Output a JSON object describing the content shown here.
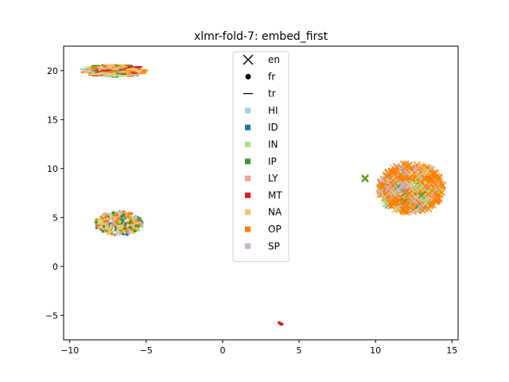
{
  "chart_data": {
    "type": "scatter",
    "title": "xlmr-fold-7: embed_first",
    "xlabel": "",
    "ylabel": "",
    "xlim": [
      -10.4,
      15.4
    ],
    "ylim": [
      -7.5,
      22.5
    ],
    "xticks": [
      -10,
      -5,
      0,
      5,
      10,
      15
    ],
    "yticks": [
      -5,
      0,
      5,
      10,
      15,
      20
    ],
    "xtick_labels": [
      "−10",
      "−5",
      "0",
      "5",
      "10",
      "15"
    ],
    "ytick_labels": [
      "−5",
      "0",
      "5",
      "10",
      "15",
      "20"
    ],
    "grid": false,
    "legend_position": "upper center",
    "markers_legend": [
      {
        "name": "en",
        "marker": "x"
      },
      {
        "name": "fr",
        "marker": "dot"
      },
      {
        "name": "tr",
        "marker": "line"
      }
    ],
    "classes": [
      {
        "name": "HI",
        "color": "#a6cee3"
      },
      {
        "name": "ID",
        "color": "#1f78b4"
      },
      {
        "name": "IN",
        "color": "#b2df8a"
      },
      {
        "name": "IP",
        "color": "#33a02c"
      },
      {
        "name": "LY",
        "color": "#fb9a99"
      },
      {
        "name": "MT",
        "color": "#e31a1c"
      },
      {
        "name": "NA",
        "color": "#fdbf6f"
      },
      {
        "name": "OP",
        "color": "#ff7f00"
      },
      {
        "name": "SP",
        "color": "#cab2d6"
      }
    ],
    "clusters": [
      {
        "marker": "line",
        "cx": -7.1,
        "cy": 20.0,
        "rx": 2.1,
        "ry": 0.65,
        "n": 260,
        "mix": {
          "NA": 0.35,
          "OP": 0.2,
          "IN": 0.12,
          "IP": 0.12,
          "MT": 0.1,
          "SP": 0.06,
          "HI": 0.05
        }
      },
      {
        "marker": "dot",
        "cx": -6.8,
        "cy": 4.4,
        "rx": 1.6,
        "ry": 1.2,
        "n": 380,
        "mix": {
          "NA": 0.3,
          "OP": 0.25,
          "IP": 0.15,
          "SP": 0.1,
          "ID": 0.1,
          "IN": 0.1
        }
      },
      {
        "marker": "x",
        "cx": 12.3,
        "cy": 8.0,
        "rx": 2.1,
        "ry": 2.5,
        "n": 520,
        "mix": {
          "OP": 0.55,
          "SP": 0.2,
          "IN": 0.12,
          "NA": 0.1,
          "IP": 0.03
        }
      },
      {
        "marker": "x",
        "cx": 9.3,
        "cy": 9.0,
        "rx": 0.15,
        "ry": 0.15,
        "n": 3,
        "mix": {
          "IP": 0.5,
          "NA": 0.5
        }
      },
      {
        "marker": "dot",
        "cx": 3.7,
        "cy": -5.85,
        "rx": 0.3,
        "ry": 0.1,
        "n": 4,
        "mix": {
          "MT": 1.0
        }
      }
    ]
  }
}
